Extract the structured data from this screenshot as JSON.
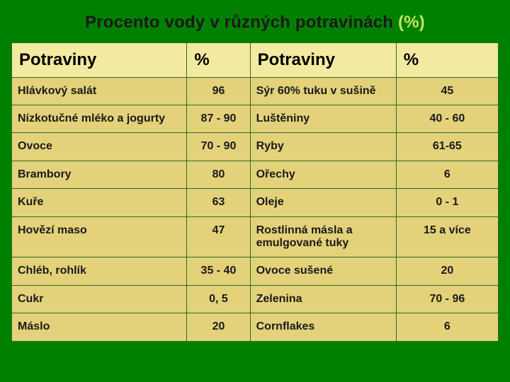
{
  "title_main": "Procento vody v různých potravinách  ",
  "title_accent": "(%)",
  "headers": {
    "food1": "Potraviny",
    "pct1": "%",
    "food2": "Potraviny",
    "pct2": "%"
  },
  "header_bg": "#f3e9a0",
  "row_bg": "#e4d27a",
  "border_color": "#2b6a2b",
  "rows": [
    {
      "f1": "Hlávkový salát",
      "p1": "96",
      "f2": "Sýr 60% tuku v sušině",
      "p2": "45"
    },
    {
      "f1": "Nízkotučné mléko a jogurty",
      "p1": "87 - 90",
      "f2": "Luštěniny",
      "p2": "40 - 60"
    },
    {
      "f1": "Ovoce",
      "p1": "70 - 90",
      "f2": "Ryby",
      "p2": "61-65"
    },
    {
      "f1": "Brambory",
      "p1": "80",
      "f2": "Ořechy",
      "p2": "6"
    },
    {
      "f1": "Kuře",
      "p1": "63",
      "f2": "Oleje",
      "p2": "0 - 1"
    },
    {
      "f1": "Hovězí maso",
      "p1": "47",
      "f2": "Rostlinná másla a emulgované tuky",
      "p2": "15 a více"
    },
    {
      "f1": "Chléb, rohlík",
      "p1": "35 - 40",
      "f2": "Ovoce sušené",
      "p2": "20"
    },
    {
      "f1": "Cukr",
      "p1": "0, 5",
      "f2": "Zelenina",
      "p2": "70 - 96"
    },
    {
      "f1": "Máslo",
      "p1": "20",
      "f2": "Cornflakes",
      "p2": "6"
    }
  ]
}
